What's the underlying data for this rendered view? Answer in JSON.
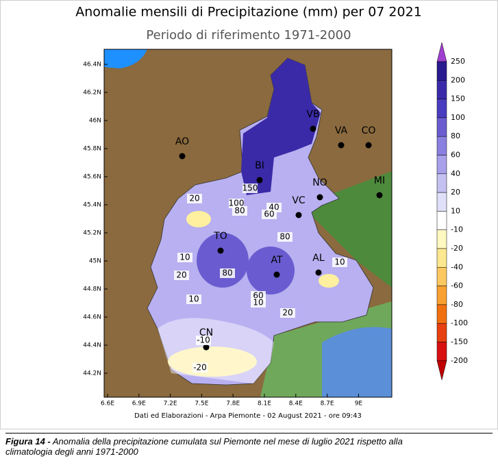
{
  "title": "Anomalie mensili di Precipitazione (mm) per 07 2021",
  "subtitle": "Periodo di riferimento 1971-2000",
  "lat_labels": [
    "46.4N",
    "46.2N",
    "46N",
    "45.8N",
    "45.6N",
    "45.4N",
    "45.2N",
    "45N",
    "44.8N",
    "44.6N",
    "44.4N",
    "44.2N"
  ],
  "lon_labels": [
    "6.6E",
    "6.9E",
    "7.2E",
    "7.5E",
    "7.8E",
    "8.1E",
    "8.4E",
    "8.7E",
    "9E"
  ],
  "cities": [
    "VB",
    "VA",
    "CO",
    "AO",
    "BI",
    "NO",
    "MI",
    "VC",
    "TO",
    "AT",
    "AL",
    "CN"
  ],
  "contour_labels": [
    "150",
    "100",
    "80",
    "40",
    "60",
    "20",
    "80",
    "10",
    "20",
    "80",
    "10",
    "60",
    "10",
    "20",
    "10",
    "-10",
    "-20"
  ],
  "legend": {
    "levels": [
      "250",
      "200",
      "150",
      "100",
      "80",
      "60",
      "40",
      "20",
      "10",
      "-10",
      "-20",
      "-40",
      "-60",
      "-80",
      "-100",
      "-150",
      "-200"
    ],
    "colors": [
      "#a040d0",
      "#2a1a90",
      "#3a2aaa",
      "#4a3cc0",
      "#6a5cd0",
      "#8a80e0",
      "#a8a0ea",
      "#c4c0f2",
      "#e0e0fa",
      "#ffffff",
      "#fff8c0",
      "#fde890",
      "#fcc860",
      "#f8a030",
      "#f07010",
      "#e84010",
      "#d81010",
      "#c00000"
    ]
  },
  "footer": "Dati ed Elaborazioni - Arpa Piemonte - 02 August 2021 - ore 09:43",
  "caption": {
    "label": "Figura 14 -",
    "line1": "Anomalia della precipitazione cumulata sul Piemonte nel mese di luglio 2021 rispetto alla",
    "line2": "climatologia degli anni 1971-2000"
  }
}
